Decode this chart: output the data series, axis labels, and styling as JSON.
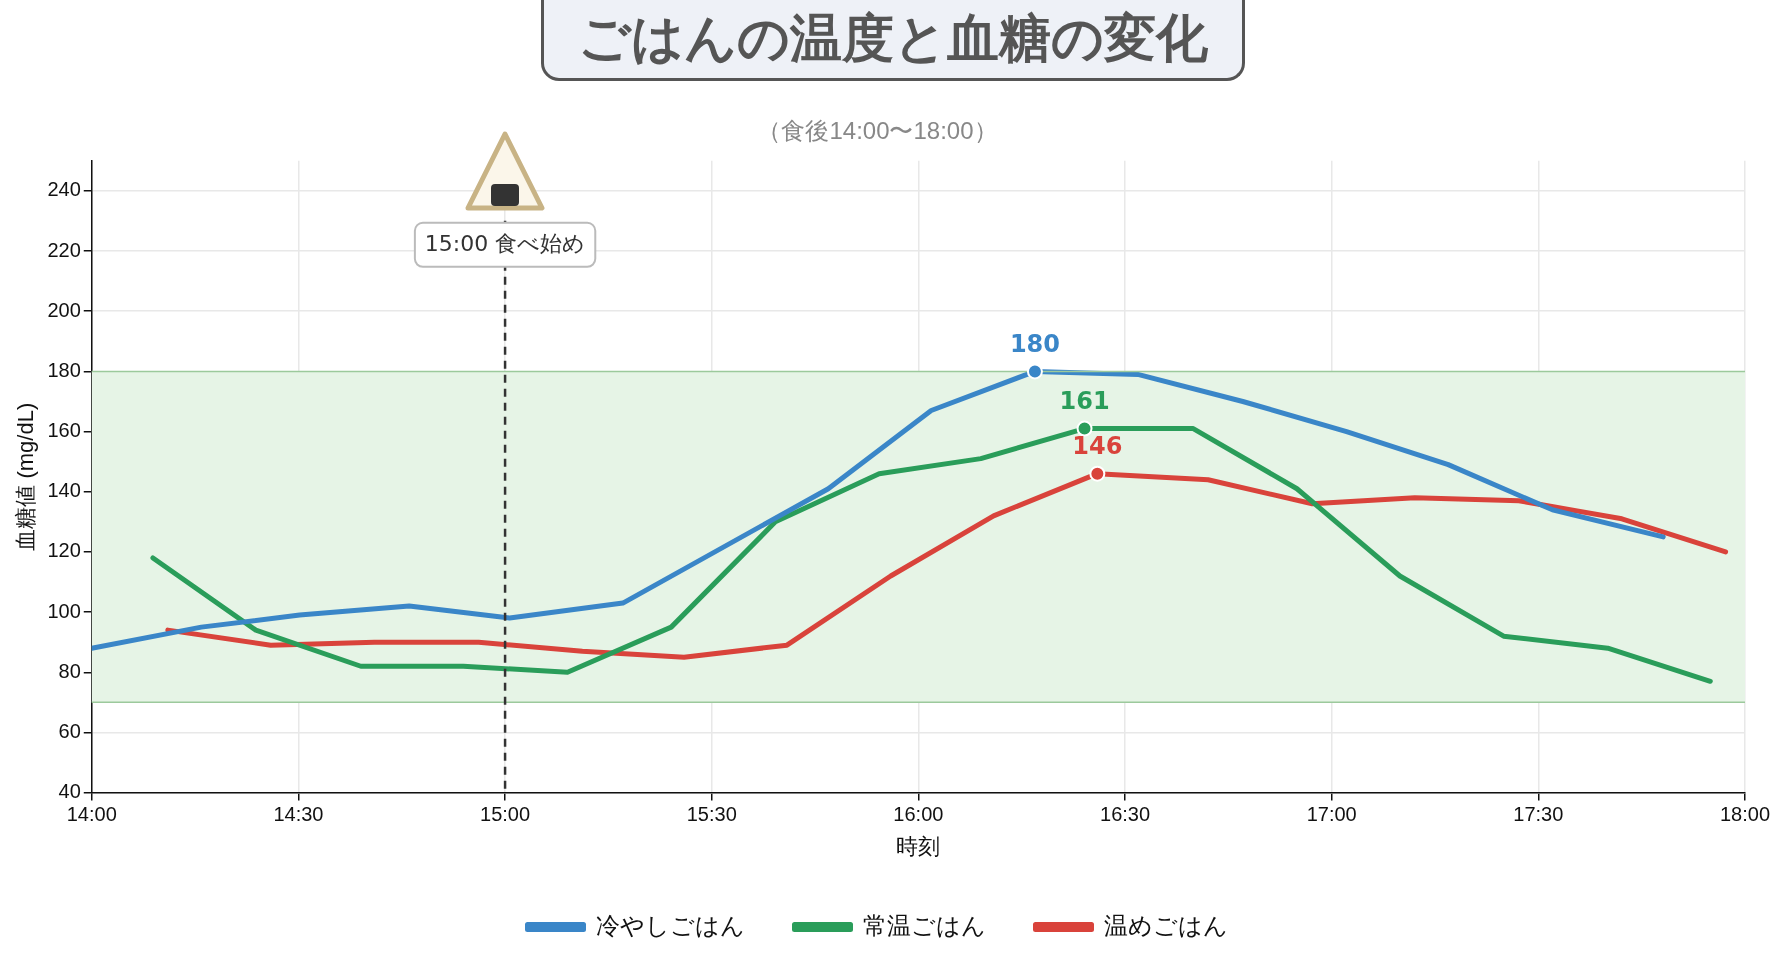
{
  "chart_data": {
    "type": "line",
    "title": "ごはんの温度と血糖の変化",
    "subtitle": "（食後14:00〜18:00）",
    "xlabel": "時刻",
    "ylabel": "血糖値 (mg/dL)",
    "xlim": [
      14,
      18
    ],
    "xticks": [
      {
        "value": 14,
        "label": "14:00"
      },
      {
        "value": 14.5,
        "label": "14:30"
      },
      {
        "value": 15,
        "label": "15:00"
      },
      {
        "value": 15.5,
        "label": "15:30"
      },
      {
        "value": 16,
        "label": "16:00"
      },
      {
        "value": 16.5,
        "label": "16:30"
      },
      {
        "value": 17,
        "label": "17:00"
      },
      {
        "value": 17.5,
        "label": "17:30"
      },
      {
        "value": 18,
        "label": "18:00"
      }
    ],
    "ylim": [
      40,
      250
    ],
    "yticks": [
      40,
      60,
      80,
      100,
      120,
      140,
      160,
      180,
      200,
      220,
      240
    ],
    "grid": true,
    "legend": "bottom",
    "marker": "none",
    "line_style": "solid",
    "bands": [
      {
        "axis": "y",
        "from": 70,
        "to": 180,
        "color": "#e6f4e6"
      }
    ],
    "ref_lines": [
      {
        "axis": "y",
        "value": 70,
        "color": "#9cc99c",
        "line_style": "solid"
      },
      {
        "axis": "y",
        "value": 180,
        "color": "#9cc99c",
        "line_style": "solid"
      },
      {
        "axis": "x",
        "value": 15,
        "label": "15:00 食べ始め",
        "color": "#333333",
        "line_style": "dashed"
      }
    ],
    "series": [
      {
        "name": "冷やしごはん",
        "color": "#3a86c8",
        "x": [
          14.0,
          14.265,
          14.503,
          14.768,
          15.011,
          15.285,
          15.782,
          16.031,
          16.282,
          16.531,
          16.785,
          17.036,
          17.282,
          17.534,
          17.802
        ],
        "values": [
          88,
          95,
          99,
          102,
          98,
          103,
          141,
          167,
          180,
          179,
          170,
          160,
          149,
          134,
          125
        ],
        "value_labels": [
          null,
          null,
          null,
          null,
          null,
          null,
          null,
          null,
          "180",
          null,
          null,
          null,
          null,
          null,
          null
        ]
      },
      {
        "name": "常温ごはん",
        "color": "#2a9d5a",
        "x": [
          14.148,
          14.397,
          14.651,
          14.899,
          15.151,
          15.402,
          15.654,
          15.905,
          16.151,
          16.402,
          16.665,
          16.916,
          17.165,
          17.416,
          17.668,
          17.916
        ],
        "values": [
          118,
          94,
          82,
          82,
          80,
          95,
          130,
          146,
          151,
          161,
          161,
          141,
          112,
          92,
          88,
          77
        ],
        "value_labels": [
          null,
          null,
          null,
          null,
          null,
          null,
          null,
          null,
          null,
          "161",
          null,
          null,
          null,
          null,
          null,
          null
        ]
      },
      {
        "name": "温めごはん",
        "color": "#d9433b",
        "x": [
          14.184,
          14.433,
          14.684,
          14.936,
          15.187,
          15.433,
          15.682,
          15.933,
          16.182,
          16.433,
          16.701,
          16.953,
          17.201,
          17.453,
          17.702,
          17.953
        ],
        "values": [
          94,
          89,
          90,
          90,
          87,
          85,
          89,
          112,
          132,
          146,
          144,
          136,
          138,
          137,
          131,
          120
        ],
        "value_labels": [
          null,
          null,
          null,
          null,
          null,
          null,
          null,
          null,
          null,
          "146",
          null,
          null,
          null,
          null,
          null,
          null
        ]
      }
    ]
  }
}
